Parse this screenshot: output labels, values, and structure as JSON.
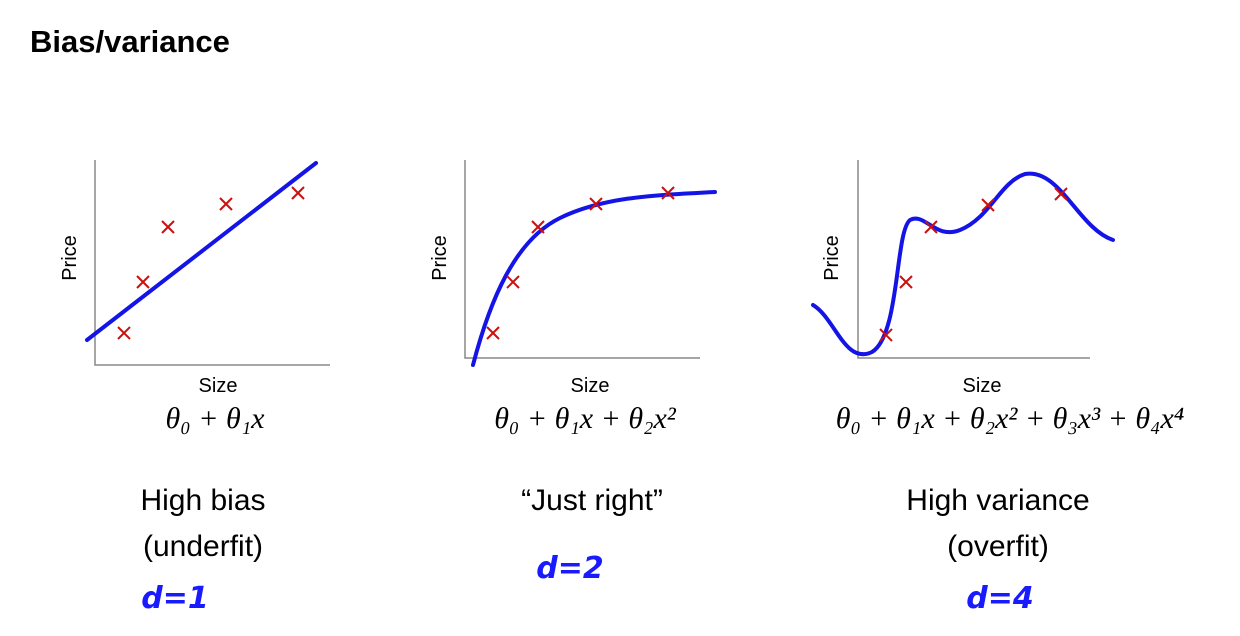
{
  "title": "Bias/variance",
  "panels": [
    {
      "y_label": "Price",
      "x_label": "Size",
      "formula": "θ₀ + θ₁x",
      "caption": [
        "High bias",
        "(underfit)"
      ],
      "note": "d=1"
    },
    {
      "y_label": "Price",
      "x_label": "Size",
      "formula": "θ₀ + θ₁x + θ₂x²",
      "caption": [
        "“Just right”"
      ],
      "note": "d=2"
    },
    {
      "y_label": "Price",
      "x_label": "Size",
      "formula": "θ₀ + θ₁x + θ₂x² + θ₃x³ + θ₄x⁴",
      "caption": [
        "High variance",
        "(overfit)"
      ],
      "note": "d=4"
    }
  ]
}
